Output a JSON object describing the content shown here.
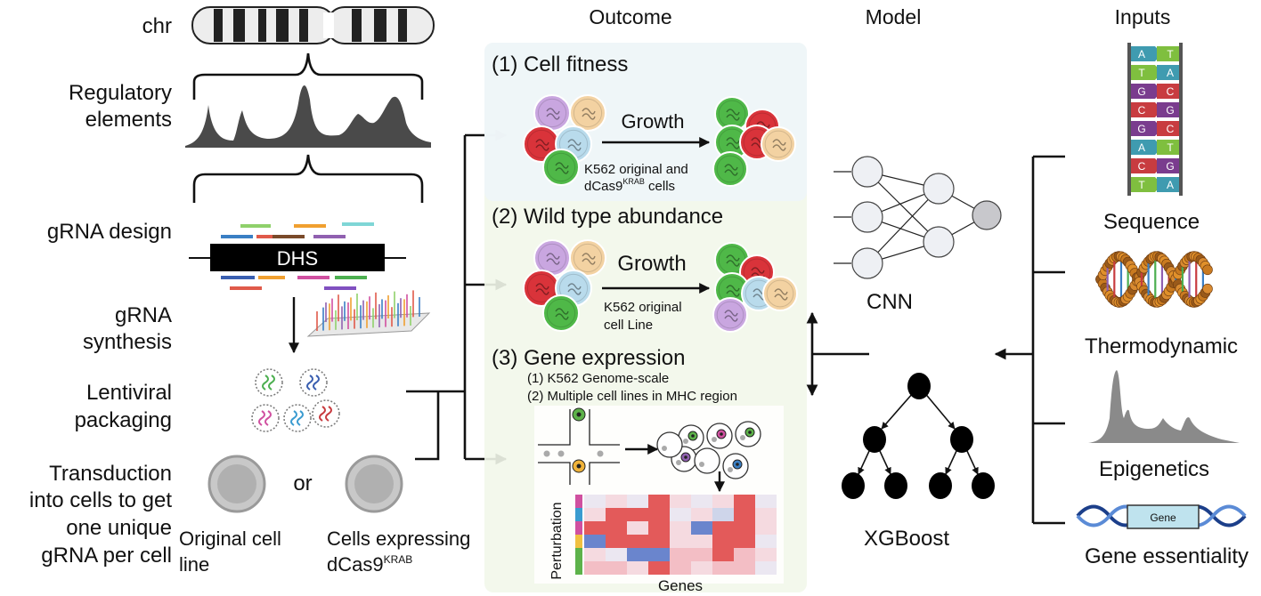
{
  "headers": {
    "outcome": "Outcome",
    "model": "Model",
    "inputs": "Inputs"
  },
  "left": {
    "chr": "chr",
    "regulatory_line1": "Regulatory",
    "regulatory_line2": "elements",
    "grna_design": "gRNA design",
    "dhs": "DHS",
    "synthesis_line1": "gRNA",
    "synthesis_line2": "synthesis",
    "lenti_line1": "Lentiviral",
    "lenti_line2": "packaging",
    "transduction_line1": "Transduction",
    "transduction_line2": "into cells to get",
    "transduction_line3": "one unique",
    "transduction_line4": "gRNA per cell",
    "or": "or",
    "original_line1": "Original cell",
    "original_line2": "line",
    "expressing_line1": "Cells expressing",
    "expressing_line2": "dCas9",
    "expressing_sup": "KRAB"
  },
  "outcomes": {
    "fitness_title": "(1) Cell fitness",
    "fitness_growth": "Growth",
    "fitness_caption1": "K562 original and",
    "fitness_caption2": "dCas9",
    "fitness_caption2_sup": "KRAB",
    "fitness_caption2_end": " cells",
    "abundance_title": "(2) Wild type abundance",
    "abundance_growth": "Growth",
    "abundance_caption1": "K562 original",
    "abundance_caption2": "cell Line",
    "expression_title": "(3) Gene expression",
    "expression_sub1": "(1) K562 Genome-scale",
    "expression_sub2": "(2) Multiple cell lines in MHC region",
    "heatmap_ylabel": "Perturbation",
    "heatmap_xlabel": "Genes"
  },
  "models": {
    "cnn": "CNN",
    "xgboost": "XGBoost"
  },
  "inputs": {
    "sequence": "Sequence",
    "thermodynamic": "Thermodynamic",
    "epigenetics": "Epigenetics",
    "gene_essentiality": "Gene essentiality",
    "gene_box": "Gene",
    "dna_pairs": [
      [
        "A",
        "T"
      ],
      [
        "T",
        "A"
      ],
      [
        "G",
        "C"
      ],
      [
        "C",
        "G"
      ],
      [
        "G",
        "C"
      ],
      [
        "A",
        "T"
      ],
      [
        "C",
        "G"
      ],
      [
        "T",
        "A"
      ]
    ]
  },
  "colors": {
    "cell_purple": "#c9a6e0",
    "cell_orange": "#f3d2a2",
    "cell_red": "#d9333a",
    "cell_blue": "#b9dbec",
    "cell_green": "#4fb848",
    "base_A": "#3f9bb0",
    "base_T": "#7fbf3f",
    "base_G": "#7a3c8e",
    "base_C": "#c83c40",
    "panel_bg": "#f2f7ea",
    "panel_bg_top": "#eef5f9"
  }
}
